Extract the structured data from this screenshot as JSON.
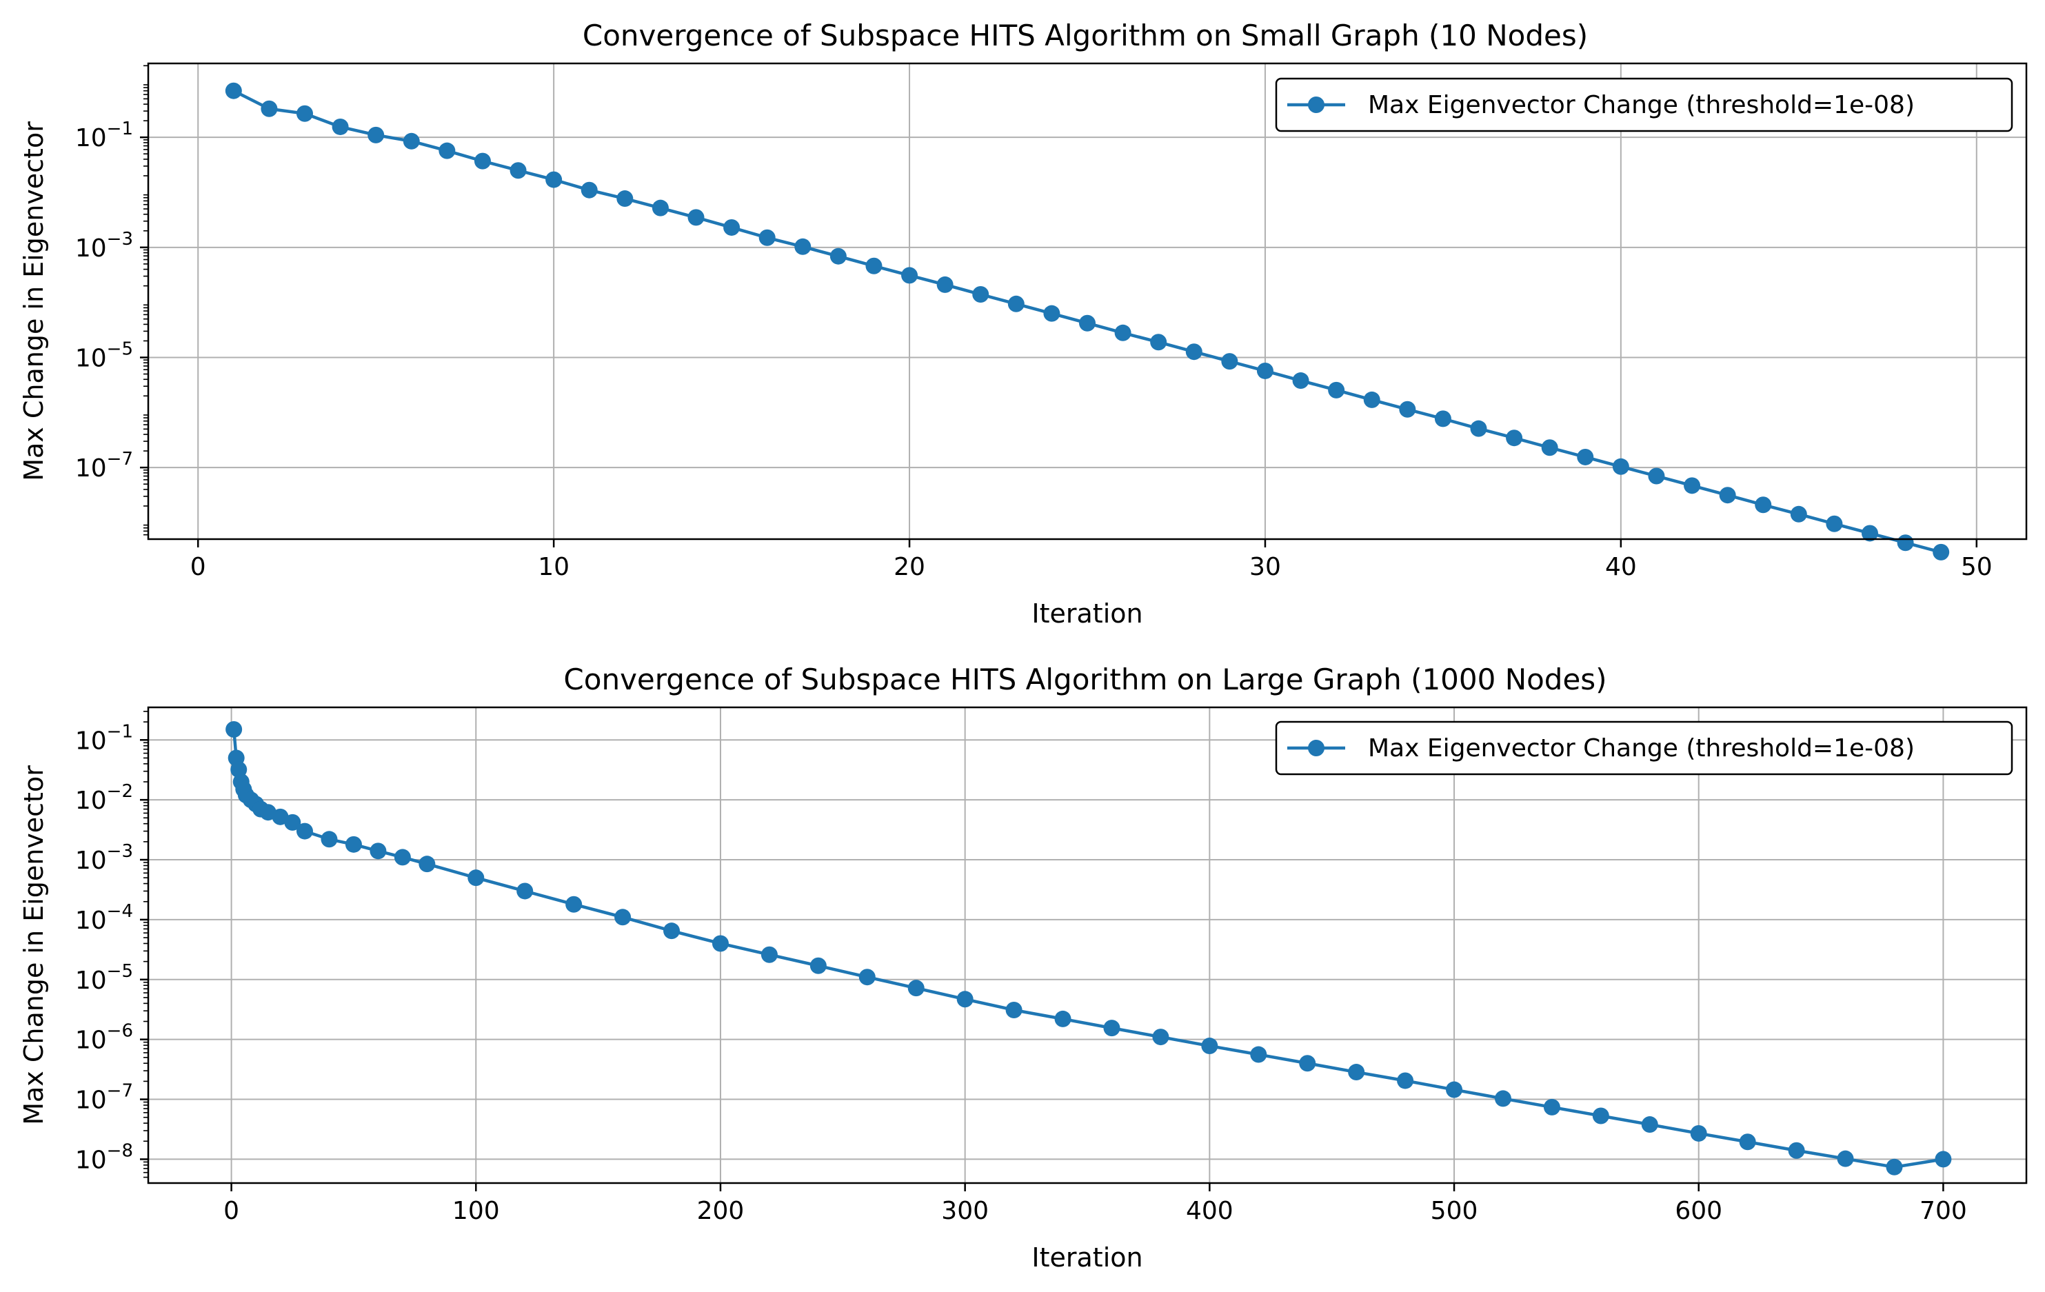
{
  "colors": {
    "series": "#1f77b4",
    "grid": "#b0b0b0",
    "axes": "#000000",
    "background": "#ffffff"
  },
  "chart_data": [
    {
      "type": "line",
      "title": "Convergence of Subspace HITS Algorithm on Small Graph (10 Nodes)",
      "xlabel": "Iteration",
      "ylabel": "Max Change in Eigenvector",
      "yscale": "log",
      "xlim": [
        -1.4,
        51.4
      ],
      "ylim": [
        5e-09,
        2.2
      ],
      "xticks": [
        0,
        10,
        20,
        30,
        40,
        50
      ],
      "xtick_labels": [
        "0",
        "10",
        "20",
        "30",
        "40",
        "50"
      ],
      "yticks": [
        0.1,
        0.001,
        1e-05,
        1e-07
      ],
      "ytick_labels": [
        {
          "base": "10",
          "exp": "−1"
        },
        {
          "base": "10",
          "exp": "−3"
        },
        {
          "base": "10",
          "exp": "−5"
        },
        {
          "base": "10",
          "exp": "−7"
        }
      ],
      "grid": true,
      "legend": {
        "position": "top-right"
      },
      "series": [
        {
          "name": "Max Eigenvector Change (threshold=1e-08)",
          "marker": "circle",
          "x": [
            1,
            2,
            3,
            4,
            5,
            6,
            7,
            8,
            9,
            10,
            11,
            12,
            13,
            14,
            15,
            16,
            17,
            18,
            19,
            20,
            21,
            22,
            23,
            24,
            25,
            26,
            27,
            28,
            29,
            30,
            31,
            32,
            33,
            34,
            35,
            36,
            37,
            38,
            39,
            40,
            41,
            42,
            43,
            44,
            45,
            46,
            47,
            48,
            49
          ],
          "y": [
            0.7,
            0.33,
            0.27,
            0.155,
            0.11,
            0.085,
            0.057,
            0.037,
            0.025,
            0.017,
            0.011,
            0.0077,
            0.0052,
            0.0035,
            0.0023,
            0.0015,
            0.00103,
            0.00069,
            0.00046,
            0.00031,
            0.00021,
            0.00014,
            9.4e-05,
            6.3e-05,
            4.2e-05,
            2.8e-05,
            1.9e-05,
            1.27e-05,
            8.5e-06,
            5.7e-06,
            3.8e-06,
            2.55e-06,
            1.7e-06,
            1.14e-06,
            7.7e-07,
            5.1e-07,
            3.45e-07,
            2.3e-07,
            1.55e-07,
            1.04e-07,
            7e-08,
            4.7e-08,
            3.15e-08,
            2.1e-08,
            1.42e-08,
            9.5e-09,
            6.4e-09,
            4.3e-09,
            2.9e-09
          ]
        }
      ]
    },
    {
      "type": "line",
      "title": "Convergence of Subspace HITS Algorithm on Large Graph (1000 Nodes)",
      "xlabel": "Iteration",
      "ylabel": "Max Change in Eigenvector",
      "yscale": "log",
      "xlim": [
        -34,
        734
      ],
      "ylim": [
        4e-09,
        0.35
      ],
      "xticks": [
        0,
        100,
        200,
        300,
        400,
        500,
        600,
        700
      ],
      "xtick_labels": [
        "0",
        "100",
        "200",
        "300",
        "400",
        "500",
        "600",
        "700"
      ],
      "yticks": [
        0.1,
        0.01,
        0.001,
        0.0001,
        1e-05,
        1e-06,
        1e-07,
        1e-08
      ],
      "ytick_labels": [
        {
          "base": "10",
          "exp": "−1"
        },
        {
          "base": "10",
          "exp": "−2"
        },
        {
          "base": "10",
          "exp": "−3"
        },
        {
          "base": "10",
          "exp": "−4"
        },
        {
          "base": "10",
          "exp": "−5"
        },
        {
          "base": "10",
          "exp": "−6"
        },
        {
          "base": "10",
          "exp": "−7"
        },
        {
          "base": "10",
          "exp": "−8"
        }
      ],
      "grid": true,
      "legend": {
        "position": "top-right"
      },
      "series": [
        {
          "name": "Max Eigenvector Change (threshold=1e-08)",
          "marker": "circle",
          "x": [
            1,
            2,
            3,
            4,
            5,
            6,
            8,
            10,
            12,
            15,
            20,
            25,
            30,
            40,
            50,
            60,
            70,
            80,
            100,
            120,
            140,
            160,
            180,
            200,
            220,
            240,
            260,
            280,
            300,
            320,
            340,
            360,
            380,
            400,
            420,
            440,
            460,
            480,
            500,
            520,
            540,
            560,
            580,
            600,
            620,
            640,
            660,
            680,
            700
          ],
          "y": [
            0.15,
            0.05,
            0.032,
            0.02,
            0.015,
            0.012,
            0.01,
            0.0085,
            0.007,
            0.0062,
            0.0052,
            0.0042,
            0.003,
            0.0022,
            0.0018,
            0.0014,
            0.0011,
            0.00085,
            0.0005,
            0.0003,
            0.00018,
            0.00011,
            6.5e-05,
            4e-05,
            2.6e-05,
            1.7e-05,
            1.1e-05,
            7.2e-06,
            4.7e-06,
            3.1e-06,
            2.2e-06,
            1.55e-06,
            1.1e-06,
            7.8e-07,
            5.6e-07,
            4e-07,
            2.85e-07,
            2.05e-07,
            1.45e-07,
            1.03e-07,
            7.4e-08,
            5.3e-08,
            3.8e-08,
            2.7e-08,
            1.95e-08,
            1.4e-08,
            1.02e-08,
            7.4e-09,
            1e-08
          ]
        }
      ]
    }
  ]
}
